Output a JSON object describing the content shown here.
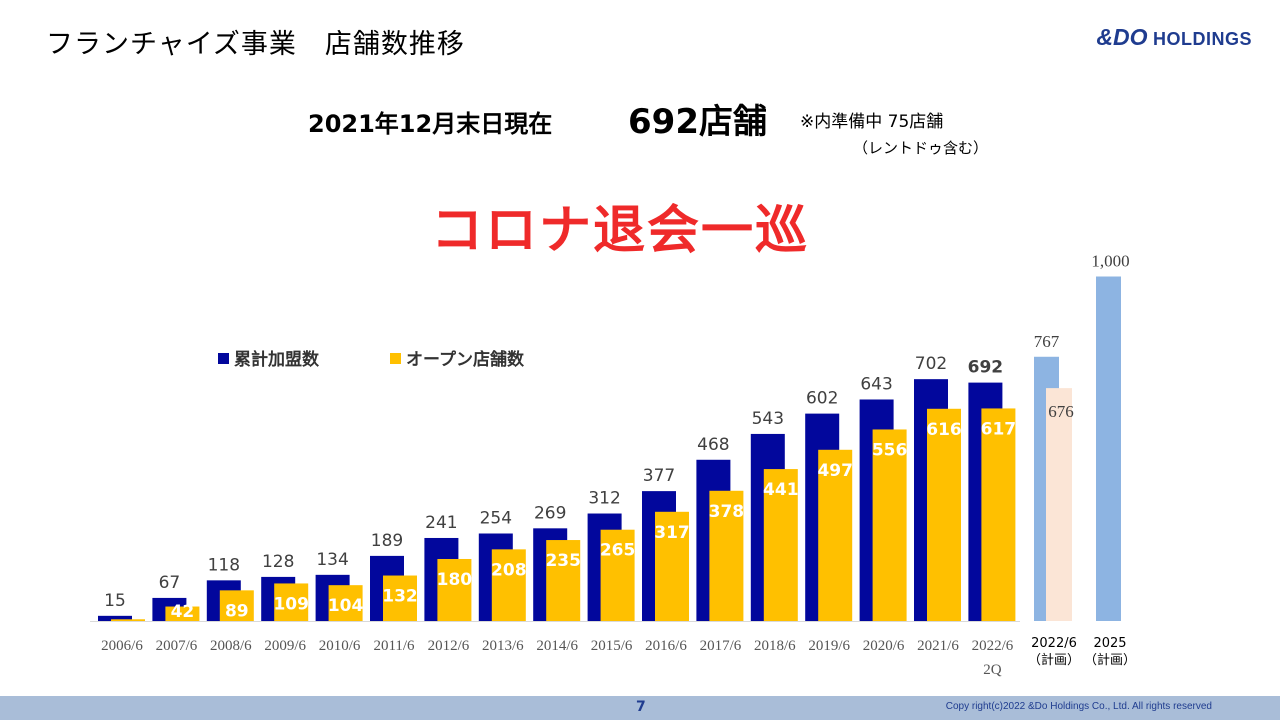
{
  "header": {
    "title": "フランチャイズ事業　店舗数推移"
  },
  "logo": {
    "mark": "&DO",
    "text": "HOLDINGS"
  },
  "headline": {
    "as_of": "2021年12月末日現在",
    "count": "692店舗",
    "note": "※内準備中 75店舗",
    "note2": "（レントドゥ含む）"
  },
  "banner": "コロナ退会一巡",
  "footer": {
    "page": "7",
    "copyright": "Copy right(c)2022 &Do Holdings Co., Ltd. All rights reserved"
  },
  "colors": {
    "cumulative": "#02079c",
    "open": "#ffc000",
    "plan_cumulative": "#8db4e2",
    "plan_open": "#fbe5d6",
    "banner": "#ef2a2a"
  },
  "chart_data": {
    "type": "bar",
    "categories": [
      "2006/6",
      "2007/6",
      "2008/6",
      "2009/6",
      "2010/6",
      "2011/6",
      "2012/6",
      "2013/6",
      "2014/6",
      "2015/6",
      "2016/6",
      "2017/6",
      "2018/6",
      "2019/6",
      "2020/6",
      "2021/6",
      "2022/6\n2Q",
      "2022/6\n（計画）",
      "2025\n（計画）"
    ],
    "series": [
      {
        "name": "累計加盟数",
        "values": [
          15,
          67,
          118,
          128,
          134,
          189,
          241,
          254,
          269,
          312,
          377,
          468,
          543,
          602,
          643,
          702,
          692,
          767,
          1000
        ],
        "labels": [
          "15",
          "67",
          "118",
          "128",
          "134",
          "189",
          "241",
          "254",
          "269",
          "312",
          "377",
          "468",
          "543",
          "602",
          "643",
          "702",
          "692",
          "767",
          "1,000"
        ]
      },
      {
        "name": "オープン店舗数",
        "values": [
          5,
          42,
          89,
          109,
          104,
          132,
          180,
          208,
          235,
          265,
          317,
          378,
          441,
          497,
          556,
          616,
          617,
          676,
          null
        ],
        "labels": [
          "",
          "42",
          "89",
          "109",
          "104",
          "132",
          "180",
          "208",
          "235",
          "265",
          "317",
          "378",
          "441",
          "497",
          "556",
          "616",
          "617",
          "676",
          ""
        ]
      }
    ],
    "ylim": [
      0,
      1000
    ],
    "grid": false,
    "legend": "top-left"
  }
}
